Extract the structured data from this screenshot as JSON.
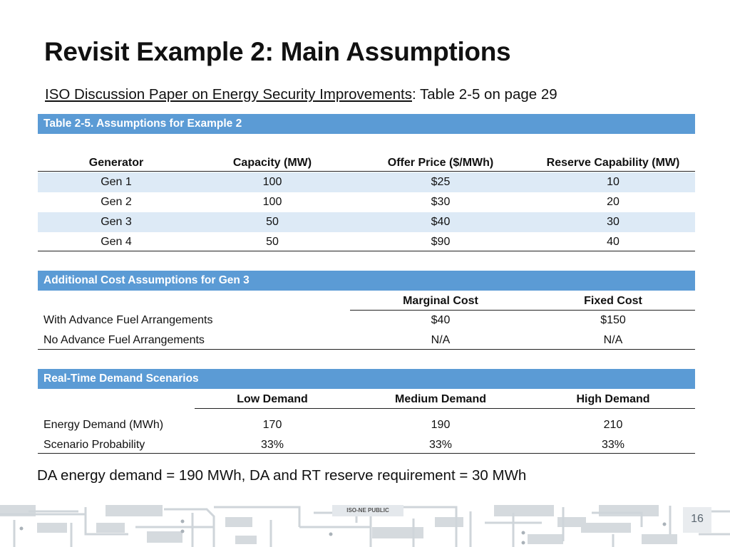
{
  "slide": {
    "title": "Revisit Example 2: Main Assumptions",
    "subtitle_link": "ISO Discussion Paper on Energy Security Improvements",
    "subtitle_rest": ": Table 2-5 on page 29",
    "note": "DA energy demand = 190 MWh, DA and RT reserve requirement = 30 MWh",
    "footer_tag": "ISO-NE PUBLIC",
    "page_number": "16"
  },
  "colors": {
    "header_bar": "#5b9bd5",
    "alt_row": "#ddeaf6"
  },
  "table1": {
    "caption": "Table 2-5. Assumptions for Example 2",
    "headers": [
      "Generator",
      "Capacity (MW)",
      "Offer Price ($/MWh)",
      "Reserve Capability (MW)"
    ],
    "rows": [
      [
        "Gen 1",
        "100",
        "$25",
        "10"
      ],
      [
        "Gen 2",
        "100",
        "$30",
        "20"
      ],
      [
        "Gen 3",
        "50",
        "$40",
        "30"
      ],
      [
        "Gen 4",
        "50",
        "$90",
        "40"
      ]
    ]
  },
  "table2": {
    "caption": "Additional Cost Assumptions for Gen 3",
    "headers": [
      "Marginal Cost",
      "Fixed Cost"
    ],
    "rows": [
      [
        "With Advance Fuel Arrangements",
        "$40",
        "$150"
      ],
      [
        "No Advance Fuel Arrangements",
        "N/A",
        "N/A"
      ]
    ]
  },
  "table3": {
    "caption": "Real-Time Demand Scenarios",
    "headers": [
      "Low Demand",
      "Medium Demand",
      "High Demand"
    ],
    "rows": [
      [
        "Energy Demand (MWh)",
        "170",
        "190",
        "210"
      ],
      [
        "Scenario Probability",
        "33%",
        "33%",
        "33%"
      ]
    ]
  }
}
